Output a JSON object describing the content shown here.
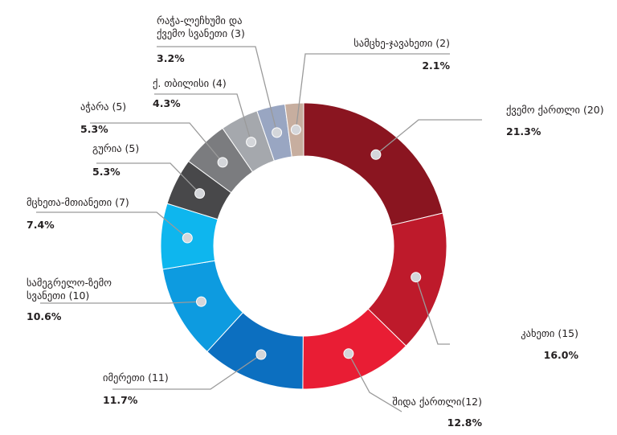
{
  "chart_data": {
    "type": "pie",
    "variant": "donut",
    "title": "",
    "slices": [
      {
        "label": "ქვემო ქართლი (20)",
        "count": 20,
        "percent": "21.3%",
        "value": 21.3,
        "color": "#8a1520"
      },
      {
        "label": "კახეთი (15)",
        "count": 15,
        "percent": "16.0%",
        "value": 16.0,
        "color": "#be1a2b"
      },
      {
        "label": "შიდა ქართლი(12)",
        "count": 12,
        "percent": "12.8%",
        "value": 12.8,
        "color": "#e91d34"
      },
      {
        "label": "იმერეთი (11)",
        "count": 11,
        "percent": "11.7%",
        "value": 11.7,
        "color": "#0c6fc0"
      },
      {
        "label": "სამეგრელო-ზემო სვანეთი (10)",
        "label_lines": [
          "სამეგრელო-ზემო",
          "სვანეთი (10)"
        ],
        "count": 10,
        "percent": "10.6%",
        "value": 10.6,
        "color": "#0d9be0"
      },
      {
        "label": "მცხეთა-მთიანეთი (7)",
        "count": 7,
        "percent": "7.4%",
        "value": 7.4,
        "color": "#0eb6ee"
      },
      {
        "label": "გურია (5)",
        "count": 5,
        "percent": "5.3%",
        "value": 5.3,
        "color": "#48484a"
      },
      {
        "label": "აჭარა (5)",
        "count": 5,
        "percent": "5.3%",
        "value": 5.3,
        "color": "#7b7c7f"
      },
      {
        "label": "ქ. თბილისი (4)",
        "count": 4,
        "percent": "4.3%",
        "value": 4.3,
        "color": "#a5a8ad"
      },
      {
        "label": "რაჭა-ლეჩხუმი და ქვემო სვანეთი (3)",
        "label_lines": [
          "რაჭა-ლეჩხუმი და",
          "ქვემო სვანეთი (3)"
        ],
        "count": 3,
        "percent": "3.2%",
        "value": 3.2,
        "color": "#99a6c2"
      },
      {
        "label": "სამცხე-ჯავახეთი (2)",
        "count": 2,
        "percent": "2.1%",
        "value": 2.1,
        "color": "#c7ae9f"
      }
    ]
  }
}
